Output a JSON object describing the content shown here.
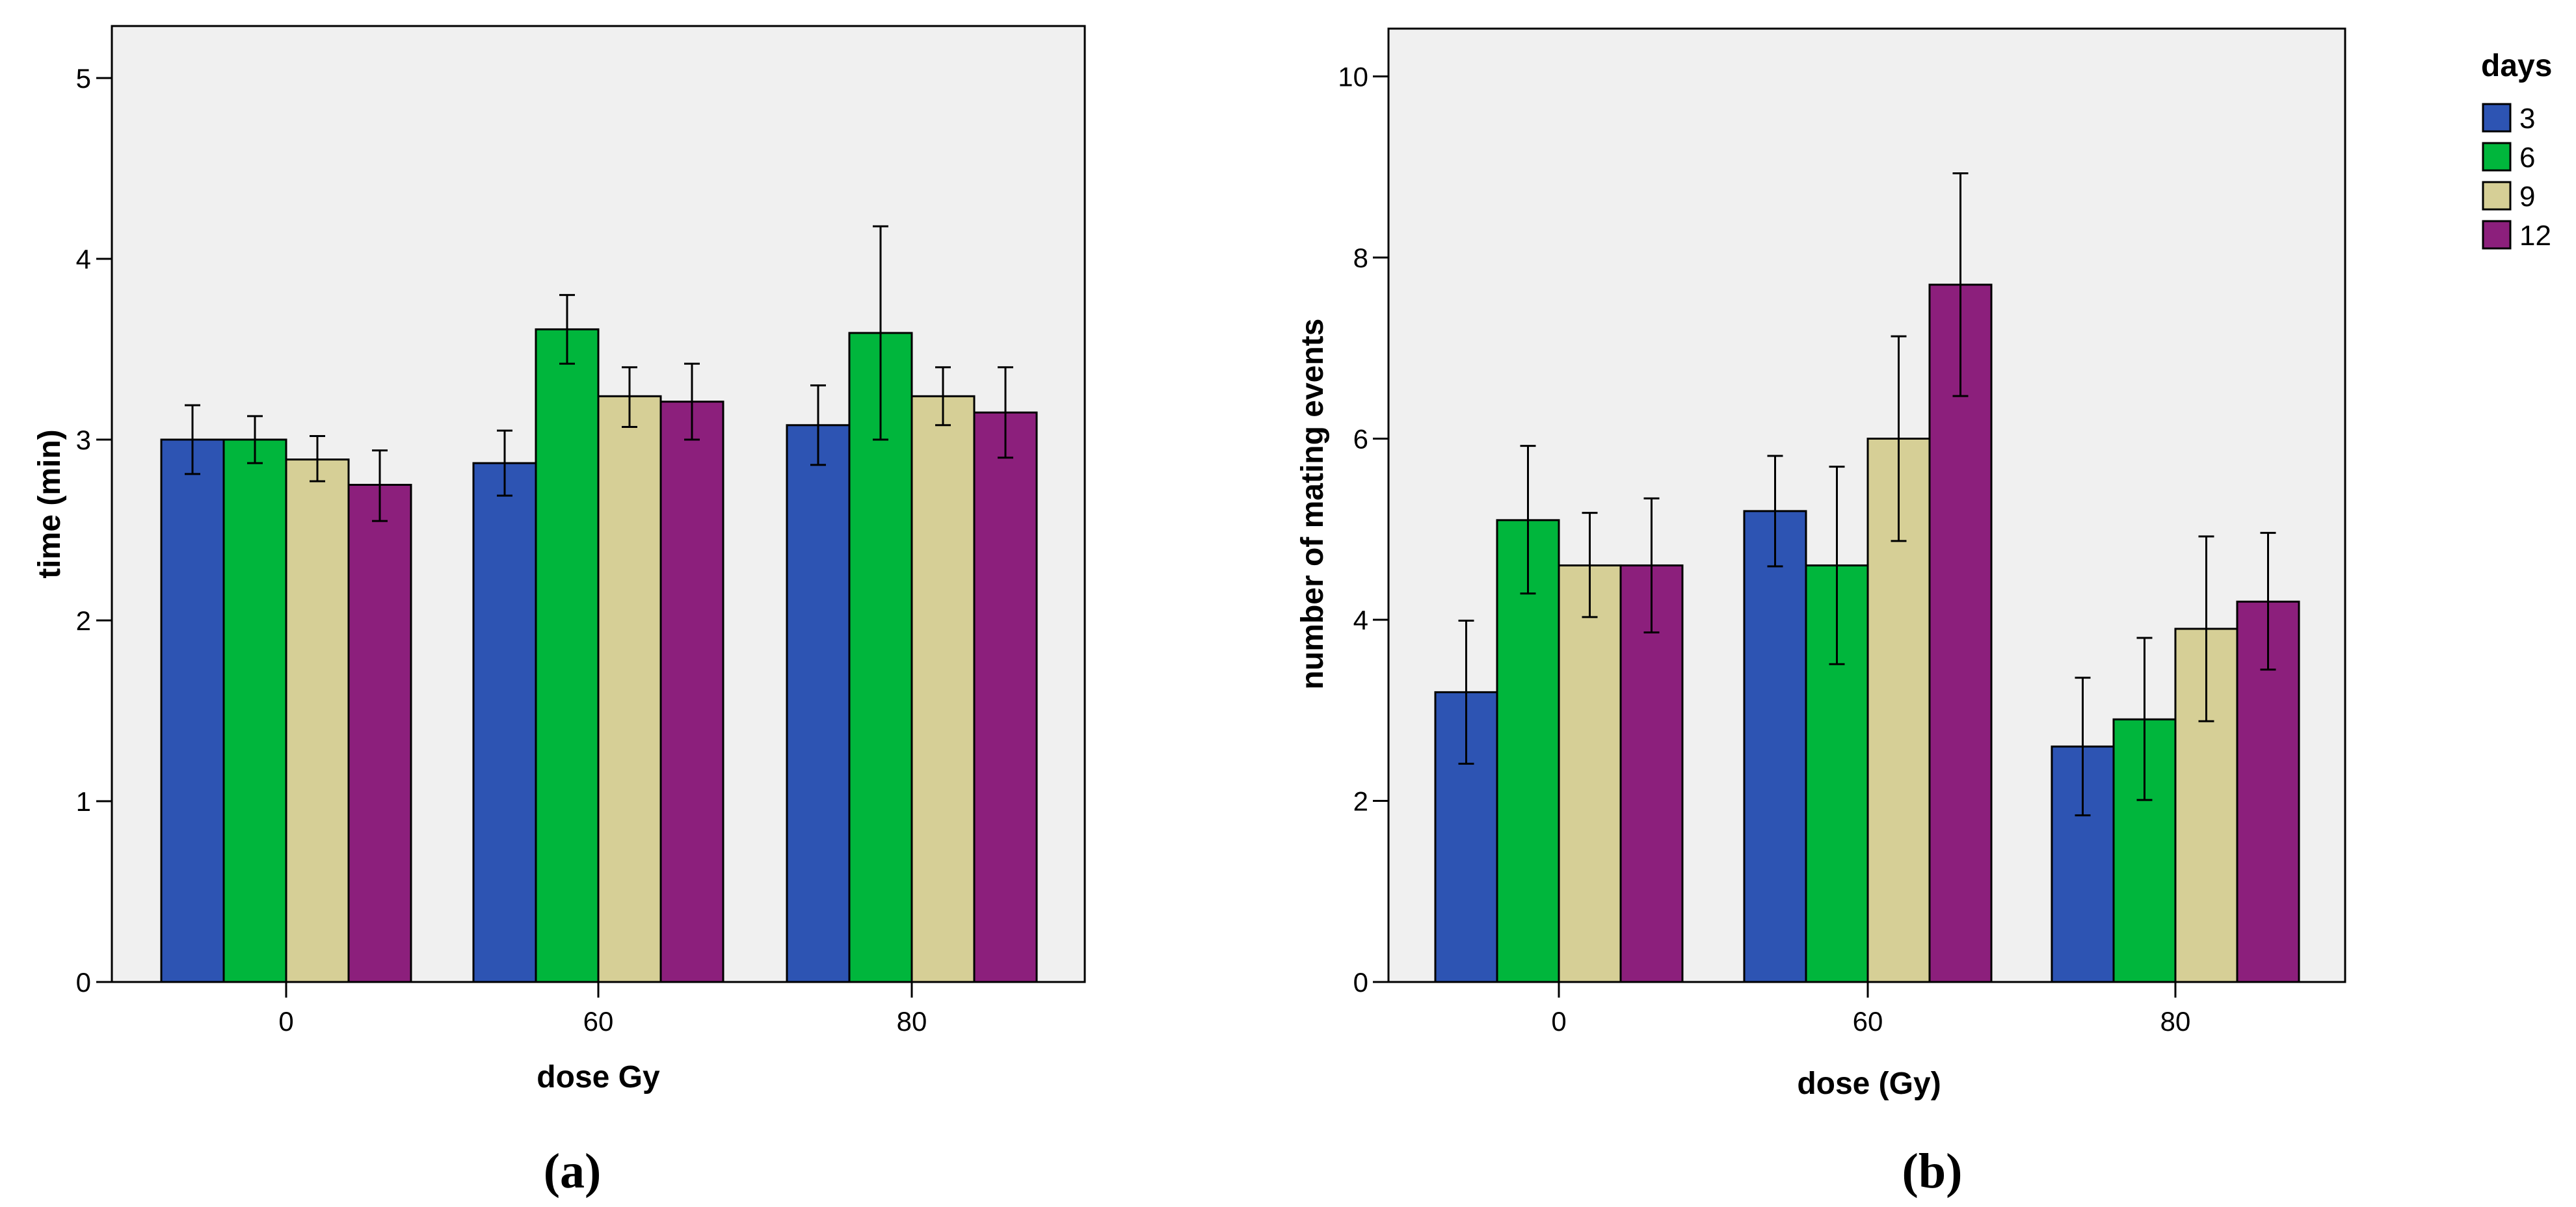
{
  "colors": {
    "plot_background": "#f0f0f0",
    "series": [
      "#2d54b3",
      "#00b63c",
      "#d6cf96",
      "#8c1f7c"
    ]
  },
  "chart_data": [
    {
      "type": "bar",
      "panel": "(a)",
      "xlabel": "dose Gy",
      "ylabel": "time (min)",
      "categories": [
        "0",
        "60",
        "80"
      ],
      "ylim": [
        0,
        5.3
      ],
      "yticks": [
        "0",
        "1",
        "2",
        "3",
        "4",
        "5"
      ],
      "series": [
        {
          "name": "3",
          "values": [
            3.0,
            2.87,
            3.08
          ],
          "err_low": [
            2.81,
            2.69,
            2.86
          ],
          "err_high": [
            3.19,
            3.05,
            3.3
          ]
        },
        {
          "name": "6",
          "values": [
            3.0,
            3.61,
            3.59
          ],
          "err_low": [
            2.87,
            3.42,
            3.0
          ],
          "err_high": [
            3.13,
            3.8,
            4.18
          ]
        },
        {
          "name": "9",
          "values": [
            2.89,
            3.24,
            3.24
          ],
          "err_low": [
            2.77,
            3.07,
            3.08
          ],
          "err_high": [
            3.02,
            3.4,
            3.4
          ]
        },
        {
          "name": "12",
          "values": [
            2.75,
            3.21,
            3.15
          ],
          "err_low": [
            2.55,
            3.0,
            2.9
          ],
          "err_high": [
            2.94,
            3.42,
            3.4
          ]
        }
      ]
    },
    {
      "type": "bar",
      "panel": "(b)",
      "xlabel": "dose (Gy)",
      "ylabel": "number of mating events",
      "categories": [
        "0",
        "60",
        "80"
      ],
      "ylim": [
        0,
        10.55
      ],
      "yticks": [
        "0",
        "2",
        "4",
        "6",
        "8",
        "10"
      ],
      "legend": {
        "title": "days",
        "position": "top-right"
      },
      "series": [
        {
          "name": "3",
          "values": [
            3.2,
            5.2,
            2.6
          ],
          "err_low": [
            2.41,
            4.59,
            1.84
          ],
          "err_high": [
            3.99,
            5.81,
            3.36
          ]
        },
        {
          "name": "6",
          "values": [
            5.1,
            4.6,
            2.9
          ],
          "err_low": [
            4.29,
            3.51,
            2.01
          ],
          "err_high": [
            5.92,
            5.69,
            3.8
          ]
        },
        {
          "name": "9",
          "values": [
            4.6,
            6.0,
            3.9
          ],
          "err_low": [
            4.03,
            4.87,
            2.88
          ],
          "err_high": [
            5.18,
            7.13,
            4.92
          ]
        },
        {
          "name": "12",
          "values": [
            4.6,
            7.7,
            4.2
          ],
          "err_low": [
            3.86,
            6.47,
            3.45
          ],
          "err_high": [
            5.34,
            8.93,
            4.96
          ]
        }
      ]
    }
  ]
}
